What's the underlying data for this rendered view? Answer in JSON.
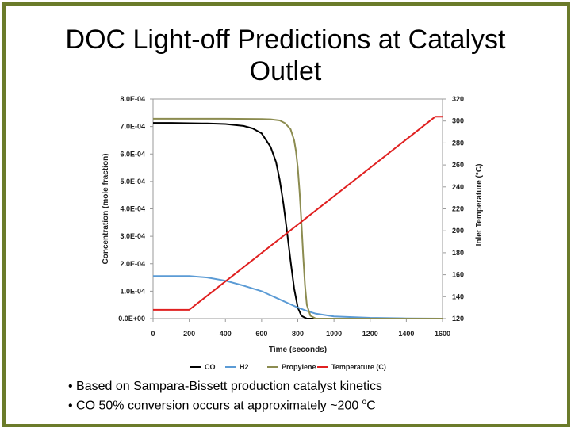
{
  "title": {
    "line1": "DOC Light-off Predictions at Catalyst",
    "line2": "Outlet"
  },
  "bullets": [
    "• Based on Sampara-Bissett production catalyst kinetics",
    "• CO 50% conversion occurs at approximately ~200 ",
    "o",
    "C"
  ],
  "colors": {
    "frame": "#6b7b2a",
    "CO": "#000000",
    "H2": "#5b9bd5",
    "Propylene": "#8c8c50",
    "Temperature": "#e02020"
  },
  "chart_data": {
    "type": "line",
    "xlabel": "Time (seconds)",
    "ylabel": "Concentration (mole fraction)",
    "y2label": "Inlet Temperature (°C)",
    "xlim": [
      0,
      1600
    ],
    "ylim": [
      0,
      0.0008
    ],
    "y2lim": [
      120,
      320
    ],
    "x_ticks": [
      "0",
      "200",
      "400",
      "600",
      "800",
      "1000",
      "1200",
      "1400",
      "1600"
    ],
    "y_ticks": [
      "0.0E+00",
      "1.0E-04",
      "2.0E-04",
      "3.0E-04",
      "4.0E-04",
      "5.0E-04",
      "6.0E-04",
      "7.0E-04",
      "8.0E-04"
    ],
    "y2_ticks": [
      "120",
      "140",
      "160",
      "180",
      "200",
      "220",
      "240",
      "260",
      "280",
      "300",
      "320"
    ],
    "grid": false,
    "legend_placement": "bottom",
    "series": [
      {
        "name": "CO",
        "axis": "left",
        "x": [
          0,
          100,
          200,
          300,
          400,
          500,
          550,
          600,
          650,
          680,
          700,
          720,
          740,
          760,
          780,
          800,
          820,
          850,
          900,
          1000,
          1600
        ],
        "y": [
          0.000713,
          0.000713,
          0.000712,
          0.000711,
          0.000709,
          0.000702,
          0.000693,
          0.000675,
          0.000625,
          0.00057,
          0.000505,
          0.00042,
          0.00032,
          0.00021,
          0.00011,
          4e-05,
          1e-05,
          0.0,
          0.0,
          0.0,
          0.0
        ]
      },
      {
        "name": "H2",
        "axis": "left",
        "x": [
          0,
          200,
          300,
          400,
          500,
          600,
          650,
          700,
          750,
          800,
          850,
          900,
          1000,
          1200,
          1400,
          1600
        ],
        "y": [
          0.000155,
          0.000155,
          0.00015,
          0.000138,
          0.00012,
          0.0001,
          8.5e-05,
          7e-05,
          5.5e-05,
          4e-05,
          2.8e-05,
          1.8e-05,
          8e-06,
          3e-06,
          1e-06,
          0.0
        ]
      },
      {
        "name": "Propylene",
        "axis": "left",
        "x": [
          0,
          200,
          400,
          600,
          650,
          700,
          730,
          760,
          780,
          790,
          800,
          810,
          820,
          830,
          840,
          850,
          870,
          900,
          1000,
          1600
        ],
        "y": [
          0.000728,
          0.000728,
          0.000728,
          0.000727,
          0.000726,
          0.000722,
          0.000712,
          0.00069,
          0.00065,
          0.00061,
          0.00055,
          0.00046,
          0.00035,
          0.00023,
          0.00012,
          5e-05,
          1e-05,
          0.0,
          0.0,
          0.0
        ]
      },
      {
        "name": "Temperature (C)",
        "axis": "right",
        "x": [
          0,
          200,
          1560,
          1600
        ],
        "y": [
          128,
          128,
          304,
          304
        ]
      }
    ]
  }
}
